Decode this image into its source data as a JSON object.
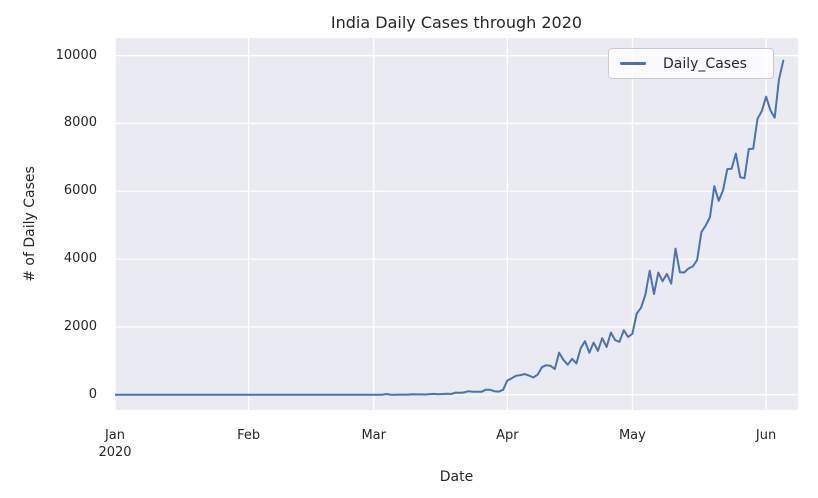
{
  "chart_data": {
    "type": "line",
    "title": "India Daily Cases through 2020",
    "xlabel": "Date",
    "ylabel": "# of Daily Cases",
    "background_color": "#EAEAF2",
    "grid_color": "#FFFFFF",
    "text_color": "#262626",
    "grid": true,
    "legend": {
      "position": "upper right",
      "label": "Daily_Cases"
    },
    "ylim": [
      -450,
      10520
    ],
    "xlim_days": [
      0,
      158.4
    ],
    "y_ticks": [
      0,
      2000,
      4000,
      6000,
      8000,
      10000
    ],
    "x_ticks": [
      {
        "day": 0,
        "label": "Jan",
        "sublabel": "2020"
      },
      {
        "day": 31,
        "label": "Feb"
      },
      {
        "day": 60,
        "label": "Mar"
      },
      {
        "day": 91,
        "label": "Apr"
      },
      {
        "day": 120,
        "label": "May"
      },
      {
        "day": 151,
        "label": "Jun"
      }
    ],
    "series": [
      {
        "name": "Daily_Cases",
        "color": "#4C72B0",
        "start_date": "2020-01-01",
        "frequency": "daily",
        "values": [
          0,
          0,
          0,
          0,
          0,
          0,
          0,
          0,
          0,
          0,
          0,
          0,
          0,
          0,
          0,
          0,
          0,
          0,
          0,
          0,
          0,
          0,
          0,
          0,
          0,
          0,
          0,
          0,
          0,
          1,
          0,
          0,
          1,
          1,
          0,
          0,
          0,
          0,
          0,
          0,
          0,
          0,
          0,
          0,
          0,
          0,
          0,
          0,
          0,
          0,
          0,
          0,
          0,
          0,
          0,
          0,
          0,
          0,
          0,
          0,
          0,
          2,
          1,
          22,
          2,
          1,
          3,
          5,
          4,
          13,
          10,
          11,
          8,
          18,
          26,
          13,
          23,
          28,
          23,
          63,
          57,
          69,
          103,
          87,
          87,
          88,
          149,
          146,
          104,
          92,
          146,
          424,
          486,
          560,
          579,
          609,
          567,
          508,
          591,
          813,
          871,
          854,
          758,
          1243,
          1031,
          886,
          1061,
          922,
          1371,
          1580,
          1239,
          1537,
          1292,
          1667,
          1408,
          1835,
          1607,
          1561,
          1902,
          1702,
          1801,
          2396,
          2564,
          2952,
          3656,
          2971,
          3602,
          3344,
          3563,
          3277,
          4311,
          3610,
          3604,
          3722,
          3786,
          3967,
          4794,
          4987,
          5242,
          6154,
          5720,
          6023,
          6654,
          6665,
          7111,
          6414,
          6387,
          7246,
          7254,
          8138,
          8364,
          8789,
          8392,
          8171,
          9304,
          9851
        ]
      }
    ]
  }
}
